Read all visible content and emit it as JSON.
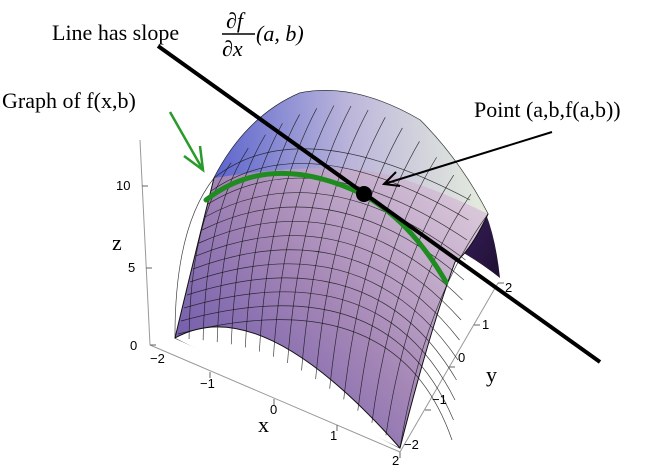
{
  "annotations": {
    "slope_prefix": "Line has slope",
    "slope_numerator": "∂f",
    "slope_denominator": "∂x",
    "slope_suffix": "(a, b)",
    "graph_label": "Graph of f(x,b)",
    "point_label": "Point (a,b,f(a,b))"
  },
  "axes": {
    "x": {
      "label": "x",
      "ticks": [
        "−2",
        "−1",
        "0",
        "1",
        "2"
      ]
    },
    "y": {
      "label": "y",
      "ticks": [
        "−2",
        "−1",
        "0",
        "1",
        "2"
      ]
    },
    "z": {
      "label": "z",
      "ticks": [
        "0",
        "5",
        "10"
      ]
    }
  },
  "colors": {
    "surface_light": "#d9e6e0",
    "surface_mid": "#a98ab8",
    "surface_dark": "#6a55b0",
    "mesh": "#111111",
    "graph_curve": "#1f8c1f",
    "arrow_green": "#2a9a2a",
    "tangent_line": "#000000"
  }
}
